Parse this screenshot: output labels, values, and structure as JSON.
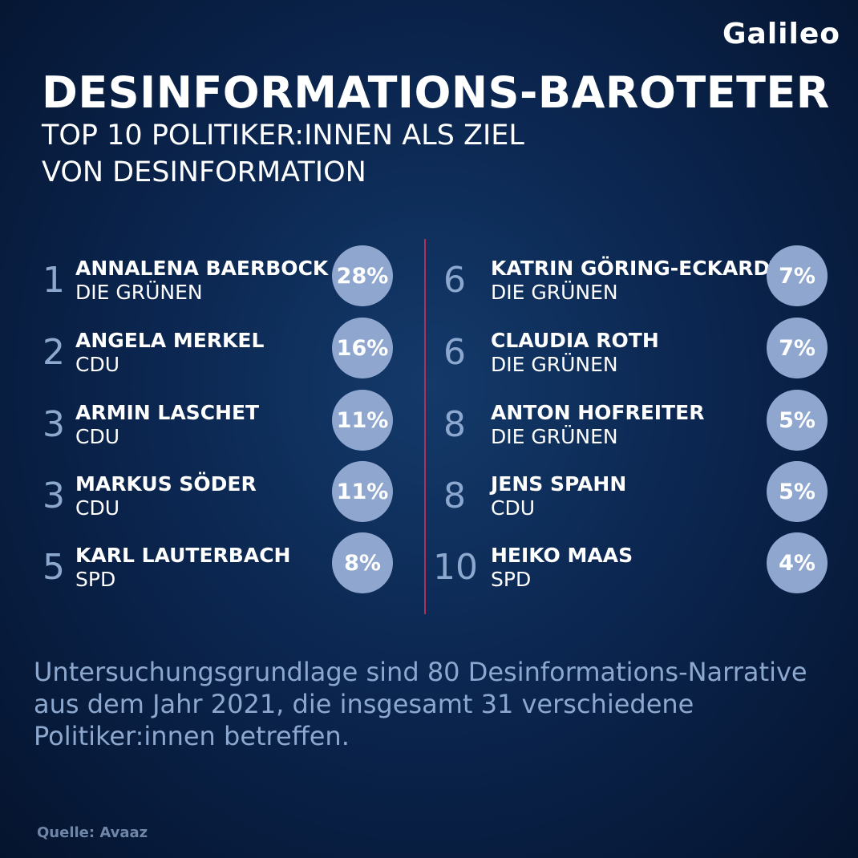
{
  "logo": "Galileo",
  "title": "DESINFORMATIONS-BAROTETER",
  "subtitle_line1": "TOP 10 POLITIKER:INNEN ALS ZIEL",
  "subtitle_line2": "VON DESINFORMATION",
  "left": [
    {
      "rank": "1",
      "name": "ANNALENA BAERBOCK",
      "party": "DIE GRÜNEN",
      "share": "28%"
    },
    {
      "rank": "2",
      "name": "ANGELA MERKEL",
      "party": "CDU",
      "share": "16%"
    },
    {
      "rank": "3",
      "name": "ARMIN LASCHET",
      "party": "CDU",
      "share": "11%"
    },
    {
      "rank": "3",
      "name": "MARKUS SÖDER",
      "party": "CDU",
      "share": "11%"
    },
    {
      "rank": "5",
      "name": "KARL LAUTERBACH",
      "party": "SPD",
      "share": "8%"
    }
  ],
  "right": [
    {
      "rank": "6",
      "name": "KATRIN GÖRING-ECKARDT",
      "party": "DIE GRÜNEN",
      "share": "7%"
    },
    {
      "rank": "6",
      "name": "CLAUDIA ROTH",
      "party": "DIE GRÜNEN",
      "share": "7%"
    },
    {
      "rank": "8",
      "name": "ANTON HOFREITER",
      "party": "DIE GRÜNEN",
      "share": "5%"
    },
    {
      "rank": "8",
      "name": "JENS SPAHN",
      "party": "CDU",
      "share": "5%"
    },
    {
      "rank": "10",
      "name": "HEIKO MAAS",
      "party": "SPD",
      "share": "4%"
    }
  ],
  "note": "Untersuchungsgrundlage sind 80 Desinformations-Narrative aus dem Jahr 2021, die insgesamt 31 verschiedene Politiker:innen betreffen.",
  "source": "Quelle: Avaaz",
  "colors": {
    "bubble": "#8fa7cf",
    "rank": "#8da8cf",
    "divider": "#b0305a",
    "background": "#0b2650"
  }
}
